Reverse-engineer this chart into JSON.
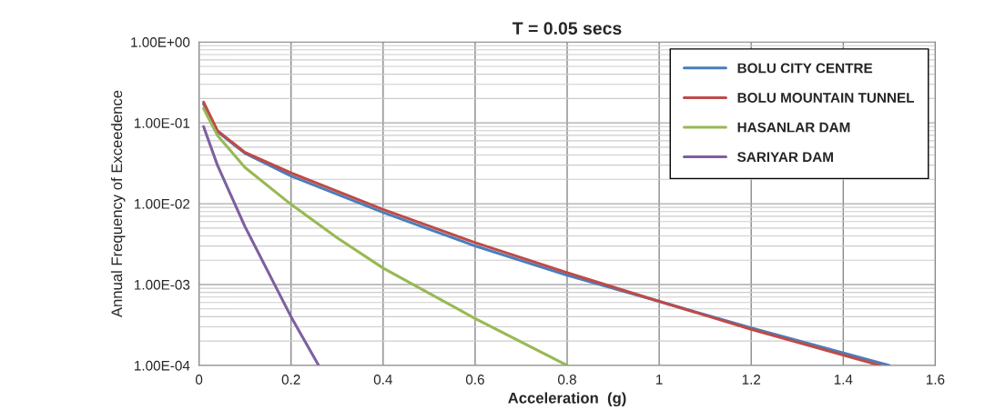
{
  "chart_data": {
    "type": "line",
    "title": "T = 0.05 secs",
    "xlabel": "Acceleration  (g)",
    "ylabel": "Annual Frequency of Exceedence",
    "log": "y",
    "xlim": [
      0,
      1.6
    ],
    "xticks": [
      0,
      0.2,
      0.4,
      0.6,
      0.8,
      1,
      1.2,
      1.4,
      1.6
    ],
    "ylim": [
      0.0001,
      1
    ],
    "yticks": [
      {
        "value": 0.0001,
        "label": "1.00E-04"
      },
      {
        "value": 0.001,
        "label": "1.00E-03"
      },
      {
        "value": 0.01,
        "label": "1.00E-02"
      },
      {
        "value": 0.1,
        "label": "1.00E-01"
      },
      {
        "value": 1,
        "label": "1.00E+00"
      }
    ],
    "grid": true,
    "legend": "top right",
    "series": [
      {
        "name": "BOLU CITY CENTRE",
        "color": "#4a7ebb",
        "x": [
          0.01,
          0.04,
          0.1,
          0.2,
          0.4,
          0.6,
          0.8,
          1.0,
          1.2,
          1.5
        ],
        "values": [
          0.17,
          0.078,
          0.042,
          0.022,
          0.0078,
          0.003,
          0.0013,
          0.00062,
          0.00029,
          0.0001
        ]
      },
      {
        "name": "BOLU MOUNTAIN TUNNEL",
        "color": "#be4b48",
        "x": [
          0.01,
          0.04,
          0.1,
          0.2,
          0.4,
          0.6,
          0.8,
          1.0,
          1.2,
          1.48
        ],
        "values": [
          0.18,
          0.08,
          0.043,
          0.024,
          0.0085,
          0.0033,
          0.0014,
          0.00062,
          0.00028,
          0.0001
        ]
      },
      {
        "name": "HASANLAR DAM",
        "color": "#98b954",
        "x": [
          0.01,
          0.04,
          0.1,
          0.2,
          0.3,
          0.4,
          0.6,
          0.8
        ],
        "values": [
          0.15,
          0.07,
          0.028,
          0.0098,
          0.0038,
          0.0016,
          0.00038,
          0.0001
        ]
      },
      {
        "name": "SARIYAR DAM",
        "color": "#7d60a0",
        "x": [
          0.01,
          0.04,
          0.1,
          0.2,
          0.26
        ],
        "values": [
          0.09,
          0.03,
          0.0052,
          0.0004,
          0.0001
        ]
      }
    ]
  }
}
